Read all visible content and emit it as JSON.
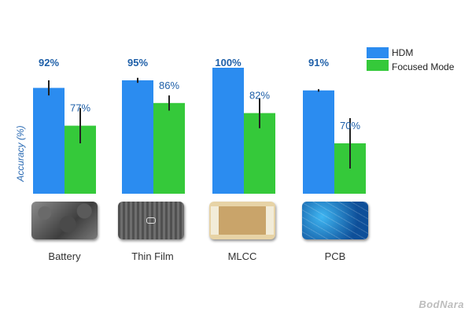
{
  "chart_data": {
    "type": "bar",
    "categories": [
      "Battery",
      "Thin Film",
      "MLCC",
      "PCB"
    ],
    "ylabel": "Accuracy (%)",
    "series": [
      {
        "name": "HDM",
        "color": "#2b8cf0",
        "values": [
          92,
          95,
          100,
          91
        ],
        "labels": [
          "92%",
          "95%",
          "100%",
          "91%"
        ],
        "error": [
          3,
          1,
          0,
          0.5
        ]
      },
      {
        "name": "Focused Mode",
        "color": "#35c93a",
        "values": [
          77,
          86,
          82,
          70
        ],
        "labels": [
          "77%",
          "86%",
          "82%",
          "70%"
        ],
        "error": [
          7,
          3,
          6,
          10
        ]
      }
    ],
    "ylim": [
      50,
      100
    ],
    "grid": false,
    "legend": "top-right"
  },
  "thumbnails": [
    {
      "category": "Battery",
      "icon": "battery-sample-image"
    },
    {
      "category": "Thin Film",
      "icon": "thin-film-sample-image"
    },
    {
      "category": "MLCC",
      "icon": "mlcc-sample-image"
    },
    {
      "category": "PCB",
      "icon": "pcb-sample-image"
    }
  ],
  "watermark": "BodNara"
}
